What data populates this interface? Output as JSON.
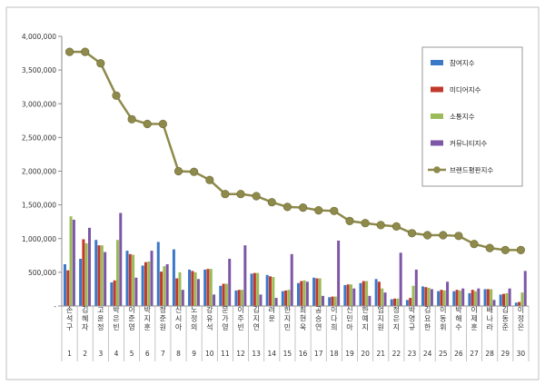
{
  "chart_data": {
    "type": "bar",
    "title": "",
    "xlabel": "",
    "ylabel": "",
    "ylim": [
      0,
      4000000
    ],
    "yticks": [
      "-",
      "500,000",
      "1,000,000",
      "1,500,000",
      "2,000,000",
      "2,500,000",
      "3,000,000",
      "3,500,000",
      "4,000,000"
    ],
    "grid": false,
    "legend_position": "right",
    "categories": [
      "손석구",
      "김혜자",
      "고윤정",
      "박은빈",
      "이준영",
      "박지훈",
      "정준원",
      "신시아",
      "노정의",
      "강유석",
      "문가영",
      "이주빈",
      "김지연",
      "려운",
      "한지민",
      "최현욱",
      "공승연",
      "이다희",
      "신민아",
      "한예지",
      "엄지원",
      "정은지",
      "박영규",
      "김요한",
      "이동휘",
      "박해수",
      "이제훈",
      "배나라",
      "김동준",
      "이정은"
    ],
    "numbers": [
      "1",
      "2",
      "3",
      "4",
      "5",
      "6",
      "7",
      "8",
      "9",
      "10",
      "11",
      "12",
      "13",
      "14",
      "15",
      "16",
      "17",
      "18",
      "19",
      "20",
      "21",
      "22",
      "23",
      "24",
      "25",
      "26",
      "27",
      "28",
      "29",
      "30"
    ],
    "series": [
      {
        "name": "참여지수",
        "color": "#3c78c8",
        "values": [
          620000,
          700000,
          980000,
          350000,
          820000,
          600000,
          950000,
          840000,
          540000,
          540000,
          300000,
          230000,
          480000,
          460000,
          220000,
          340000,
          420000,
          130000,
          310000,
          340000,
          400000,
          100000,
          90000,
          290000,
          220000,
          220000,
          190000,
          250000,
          170000,
          50000
        ]
      },
      {
        "name": "미디어지수",
        "color": "#c0392b",
        "values": [
          530000,
          990000,
          900000,
          380000,
          770000,
          650000,
          510000,
          410000,
          520000,
          550000,
          330000,
          240000,
          490000,
          440000,
          230000,
          370000,
          410000,
          140000,
          320000,
          370000,
          360000,
          110000,
          120000,
          280000,
          240000,
          240000,
          240000,
          250000,
          180000,
          60000
        ]
      },
      {
        "name": "소통지수",
        "color": "#9bbb59",
        "values": [
          1330000,
          930000,
          900000,
          980000,
          760000,
          660000,
          590000,
          500000,
          500000,
          550000,
          330000,
          240000,
          490000,
          430000,
          240000,
          380000,
          410000,
          140000,
          320000,
          370000,
          260000,
          110000,
          300000,
          270000,
          230000,
          230000,
          220000,
          250000,
          190000,
          200000
        ]
      },
      {
        "name": "커뮤니티지수",
        "color": "#7e56a6",
        "values": [
          1280000,
          1160000,
          800000,
          1380000,
          420000,
          820000,
          620000,
          240000,
          400000,
          170000,
          700000,
          900000,
          170000,
          120000,
          770000,
          360000,
          150000,
          970000,
          260000,
          150000,
          200000,
          790000,
          540000,
          250000,
          360000,
          260000,
          260000,
          90000,
          260000,
          520000
        ]
      },
      {
        "name": "브랜드평판지수",
        "color": "#8e8a4c",
        "line": true,
        "values": [
          3770000,
          3770000,
          3600000,
          3120000,
          2770000,
          2700000,
          2700000,
          2000000,
          1990000,
          1870000,
          1660000,
          1660000,
          1630000,
          1540000,
          1470000,
          1460000,
          1420000,
          1410000,
          1260000,
          1230000,
          1200000,
          1180000,
          1080000,
          1050000,
          1050000,
          1040000,
          920000,
          860000,
          830000,
          830000
        ]
      }
    ]
  }
}
